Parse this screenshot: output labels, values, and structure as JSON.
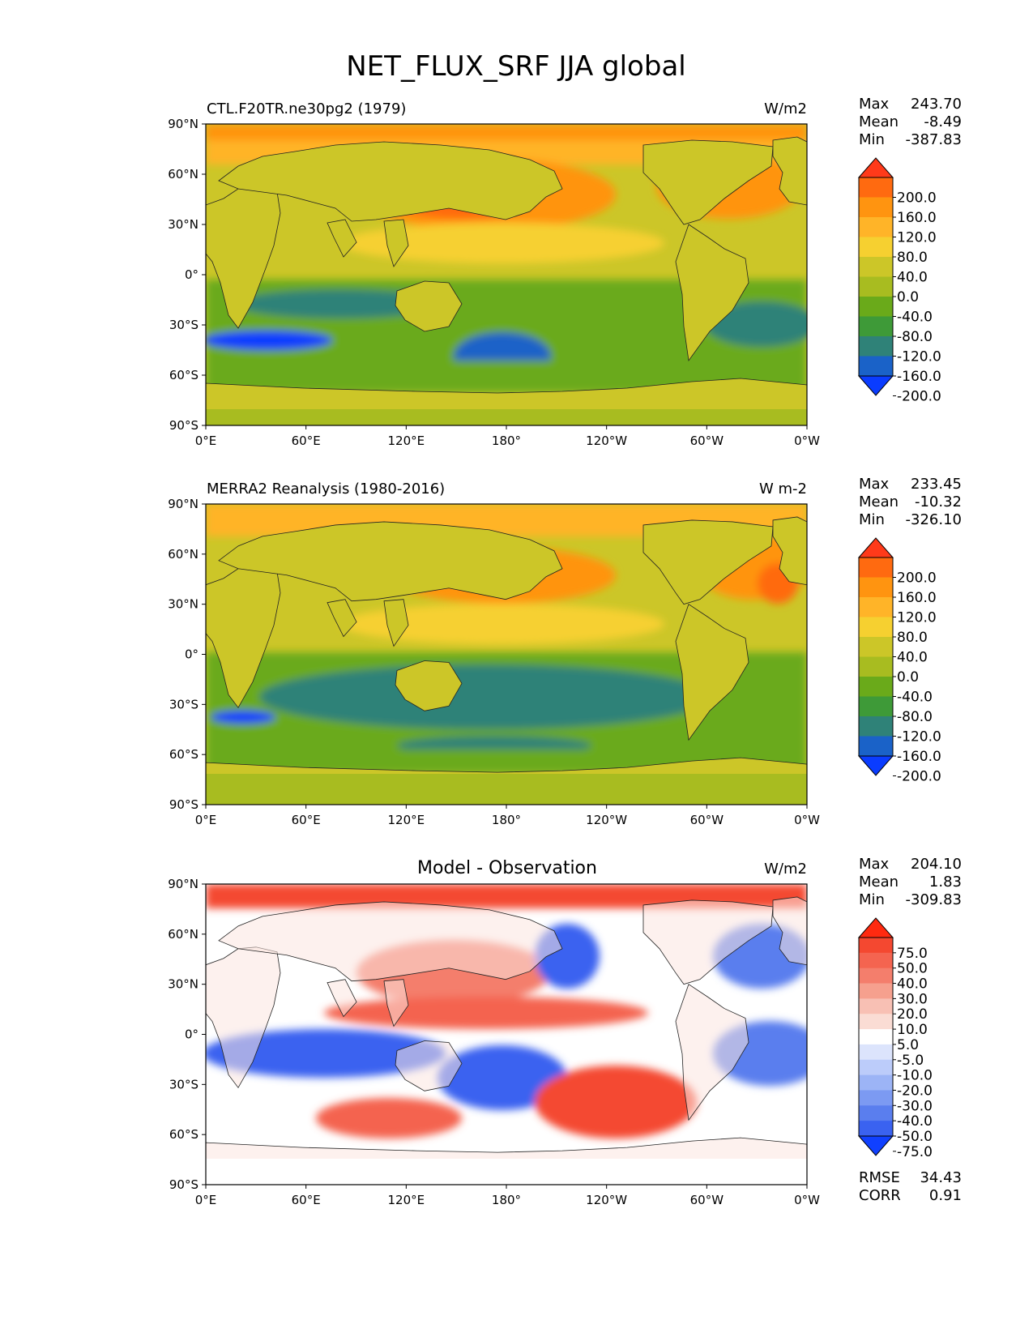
{
  "figure": {
    "title": "NET_FLUX_SRF JJA global"
  },
  "chart_data": [
    {
      "type": "heatmap",
      "subtitle_left": "CTL.F20TR.ne30pg2 (1979)",
      "subtitle_right": "W/m2",
      "stats": [
        {
          "label": "Max",
          "value": "243.70"
        },
        {
          "label": "Mean",
          "value": "-8.49"
        },
        {
          "label": "Min",
          "value": "-387.83"
        }
      ],
      "lat_ticks": [
        "90°N",
        "60°N",
        "30°N",
        "0°",
        "30°S",
        "60°S",
        "90°S"
      ],
      "lon_ticks": [
        "0°E",
        "60°E",
        "120°E",
        "180°",
        "120°W",
        "60°W",
        "0°W"
      ],
      "xlim": [
        0,
        360
      ],
      "ylim": [
        -90,
        90
      ],
      "colorbar": {
        "labels": [
          "200.0",
          "160.0",
          "120.0",
          "80.0",
          "40.0",
          "0.0",
          "-40.0",
          "-80.0",
          "-120.0",
          "-160.0",
          "-200.0"
        ],
        "colors": [
          "#ff3a1a",
          "#ff6a10",
          "#ff9410",
          "#ffb428",
          "#f6d030",
          "#ccc628",
          "#a8bc20",
          "#6aaa1a",
          "#3e9a38",
          "#2f8278",
          "#1a62c8",
          "#0a3cff"
        ]
      }
    },
    {
      "type": "heatmap",
      "subtitle_left": "MERRA2 Reanalysis (1980-2016)",
      "subtitle_right": "W m-2",
      "stats": [
        {
          "label": "Max",
          "value": "233.45"
        },
        {
          "label": "Mean",
          "value": "-10.32"
        },
        {
          "label": "Min",
          "value": "-326.10"
        }
      ],
      "lat_ticks": [
        "90°N",
        "60°N",
        "30°N",
        "0°",
        "30°S",
        "60°S",
        "90°S"
      ],
      "lon_ticks": [
        "0°E",
        "60°E",
        "120°E",
        "180°",
        "120°W",
        "60°W",
        "0°W"
      ],
      "xlim": [
        0,
        360
      ],
      "ylim": [
        -90,
        90
      ],
      "colorbar": {
        "labels": [
          "200.0",
          "160.0",
          "120.0",
          "80.0",
          "40.0",
          "0.0",
          "-40.0",
          "-80.0",
          "-120.0",
          "-160.0",
          "-200.0"
        ],
        "colors": [
          "#ff3a1a",
          "#ff6a10",
          "#ff9410",
          "#ffb428",
          "#f6d030",
          "#ccc628",
          "#a8bc20",
          "#6aaa1a",
          "#3e9a38",
          "#2f8278",
          "#1a62c8",
          "#0a3cff"
        ]
      }
    },
    {
      "type": "heatmap",
      "title": "Model - Observation",
      "subtitle_right": "W/m2",
      "stats": [
        {
          "label": "Max",
          "value": "204.10"
        },
        {
          "label": "Mean",
          "value": "1.83"
        },
        {
          "label": "Min",
          "value": "-309.83"
        }
      ],
      "bottom_stats": [
        {
          "label": "RMSE",
          "value": "34.43"
        },
        {
          "label": "CORR",
          "value": "0.91"
        }
      ],
      "lat_ticks": [
        "90°N",
        "60°N",
        "30°N",
        "0°",
        "30°S",
        "60°S",
        "90°S"
      ],
      "lon_ticks": [
        "0°E",
        "60°E",
        "120°E",
        "180°",
        "120°W",
        "60°W",
        "0°W"
      ],
      "xlim": [
        0,
        360
      ],
      "ylim": [
        -90,
        90
      ],
      "colorbar": {
        "labels": [
          "75.0",
          "50.0",
          "40.0",
          "30.0",
          "20.0",
          "10.0",
          "5.0",
          "-5.0",
          "-10.0",
          "-20.0",
          "-30.0",
          "-40.0",
          "-50.0",
          "-75.0"
        ],
        "colors": [
          "#ff2a10",
          "#f44830",
          "#f46450",
          "#f47e6c",
          "#f6a08e",
          "#f8c0b4",
          "#fadcd4",
          "#ffffff",
          "#dce4fc",
          "#bcccfa",
          "#9cb4f6",
          "#7c9af2",
          "#5a7eee",
          "#3a62f0",
          "#1040ff"
        ]
      }
    }
  ]
}
